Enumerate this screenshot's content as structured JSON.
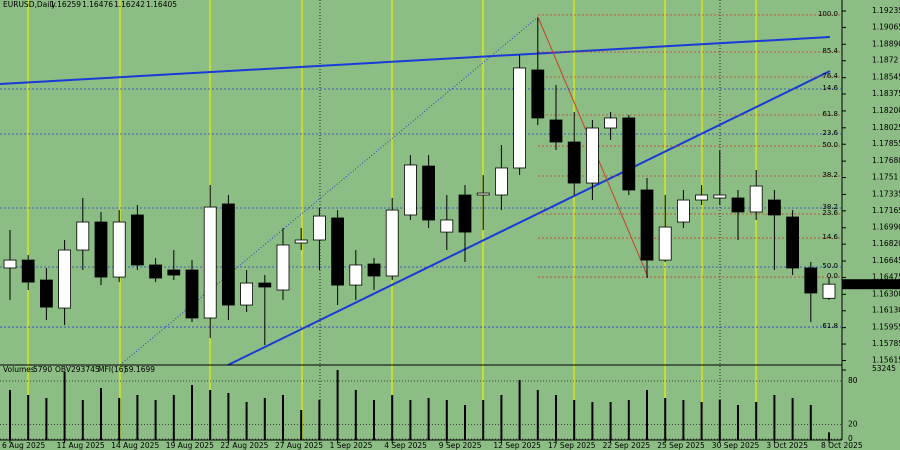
{
  "header": {
    "symbol": "EURUSD,Daily"
  },
  "chart_data": {
    "type": "candlestick",
    "categories": [
      "6 Aug 2025",
      null,
      null,
      "11 Aug 2025",
      null,
      null,
      "14 Aug 2025",
      null,
      null,
      "19 Aug 2025",
      null,
      null,
      "22 Aug 2025",
      null,
      null,
      "27 Aug 2025",
      null,
      null,
      "1 Sep 2025",
      null,
      null,
      "4 Sep 2025",
      null,
      null,
      "9 Sep 2025",
      null,
      null,
      "12 Sep 2025",
      null,
      null,
      "17 Sep 2025",
      null,
      null,
      "22 Sep 2025",
      null,
      null,
      "25 Sep 2025",
      null,
      null,
      "30 Sep 2025",
      null,
      null,
      "3 Oct 2025",
      null,
      null,
      "8 Oct 2025"
    ],
    "open": [
      1.16573,
      1.16655,
      1.16448,
      1.16158,
      1.16759,
      1.17049,
      1.16479,
      1.17122,
      1.16604,
      1.16552,
      1.16552,
      1.16055,
      1.17236,
      1.16189,
      1.16417,
      1.16345,
      1.16832,
      1.16863,
      1.17091,
      1.16396,
      1.16614,
      1.1649,
      1.17122,
      1.17629,
      1.16945,
      1.17329,
      1.17329,
      1.17329,
      1.17609,
      1.18624,
      1.18106,
      1.17878,
      1.17453,
      1.18023,
      1.18127,
      1.17381,
      1.16655,
      1.17049,
      1.17277,
      1.17298,
      1.17298,
      1.17153,
      1.17277,
      1.17101,
      1.16573,
      1.16259
    ],
    "high": [
      1.16966,
      1.16707,
      1.16573,
      1.16863,
      1.17298,
      1.17153,
      1.17173,
      1.17225,
      1.16676,
      1.16759,
      1.16655,
      1.17432,
      1.17329,
      1.16552,
      1.165,
      1.16987,
      1.16987,
      1.17194,
      1.17173,
      1.16759,
      1.16676,
      1.17298,
      1.17743,
      1.17743,
      1.17329,
      1.17432,
      1.17536,
      1.17847,
      1.18779,
      1.19163,
      1.18468,
      1.18189,
      1.18106,
      1.18189,
      1.18158,
      1.17505,
      1.17329,
      1.17381,
      1.17432,
      1.17795,
      1.17381,
      1.17588,
      1.17381,
      1.17173,
      1.16635,
      1.16476
    ],
    "low": [
      1.16241,
      1.16345,
      1.16034,
      1.15982,
      1.16552,
      1.16396,
      1.16427,
      1.16552,
      1.16427,
      1.16448,
      1.16013,
      1.15847,
      1.16034,
      1.16117,
      1.15775,
      1.16241,
      1.16759,
      1.16552,
      1.16189,
      1.16241,
      1.16345,
      1.16448,
      1.1707,
      1.16987,
      1.16759,
      1.16635,
      1.16966,
      1.17173,
      1.17536,
      1.18054,
      1.17795,
      1.17329,
      1.17277,
      1.17899,
      1.17329,
      1.16469,
      1.16635,
      1.16987,
      1.17225,
      1.17225,
      1.16863,
      1.1707,
      1.16552,
      1.165,
      1.16013,
      1.16242
    ],
    "close": [
      1.16655,
      1.16427,
      1.16168,
      1.16759,
      1.17049,
      1.16479,
      1.17049,
      1.16604,
      1.16469,
      1.165,
      1.16055,
      1.17204,
      1.16189,
      1.16417,
      1.16376,
      1.16811,
      1.16863,
      1.17111,
      1.16396,
      1.16604,
      1.1649,
      1.17173,
      1.1764,
      1.1707,
      1.1707,
      1.16945,
      1.17349,
      1.17609,
      1.18645,
      1.18127,
      1.17878,
      1.17453,
      1.18023,
      1.18127,
      1.17381,
      1.16655,
      1.16997,
      1.17277,
      1.17329,
      1.17329,
      1.17153,
      1.17422,
      1.17122,
      1.16573,
      1.16314,
      1.16405
    ],
    "up_color": "#ffffff",
    "down_color": "#000000",
    "ylim": [
      1.15568,
      1.19349
    ],
    "yticks": [
      1.19235,
      1.19065,
      {
        "value": 1.1889,
        "label": "1.18890"
      },
      1.1872,
      1.18545,
      1.18375,
      {
        "value": 1.182,
        "label": "1.18200"
      },
      1.18025,
      1.17855,
      {
        "value": 1.1768,
        "label": "1.17680"
      },
      1.1751,
      1.17335,
      1.17165,
      {
        "value": 1.1699,
        "label": "1.16990"
      },
      {
        "value": 1.1682,
        "label": "1.16820"
      },
      1.16645,
      1.16475,
      {
        "value": 1.163,
        "label": "1.16300"
      },
      {
        "value": 1.1613,
        "label": "1.16130"
      },
      1.15955,
      1.15785,
      1.15615
    ],
    "fib_levels": [
      {
        "label": "100.0",
        "value": 1.19194,
        "color": "#c8402a"
      },
      {
        "label": "85.4",
        "value": 1.1881,
        "color": "#c8402a"
      },
      {
        "label": "76.4",
        "value": 1.18551,
        "color": "#c8402a"
      },
      {
        "label": "14.6",
        "value": 1.18427,
        "color": "#2a3fd0"
      },
      {
        "label": "61.8",
        "value": 1.18158,
        "color": "#c8402a"
      },
      {
        "label": "23.6",
        "value": 1.17961,
        "color": "#2a3fd0"
      },
      {
        "label": "50.0",
        "value": 1.17836,
        "color": "#c8402a"
      },
      {
        "label": "38.2",
        "value": 1.17526,
        "color": "#c8402a"
      },
      {
        "label": "38.2",
        "value": 1.17194,
        "color": "#2a3fd0"
      },
      {
        "label": "23.6",
        "value": 1.17132,
        "color": "#c8402a"
      },
      {
        "label": "14.6",
        "value": 1.16883,
        "color": "#c8402a"
      },
      {
        "label": "50.0",
        "value": 1.16583,
        "color": "#2a3fd0"
      },
      {
        "label": "0.0",
        "value": 1.16479,
        "color": "#c8402a"
      },
      {
        "label": "61.8",
        "value": 1.15961,
        "color": "#2a3fd0"
      }
    ]
  },
  "volume_panel": {
    "type": "bar",
    "label": "Volumes",
    "color": "#000000",
    "values": [
      38030,
      34230,
      31950,
      51720,
      30430,
      39550,
      31950,
      34230,
      30430,
      34230,
      41830,
      38030,
      35750,
      28900,
      31950,
      34230,
      22820,
      30430,
      53240,
      38030,
      30430,
      34230,
      30430,
      31950,
      30430,
      26620,
      30430,
      34230,
      45640,
      38030,
      34230,
      30430,
      28900,
      28900,
      30430,
      38030,
      31950,
      30430,
      28900,
      30430,
      26620,
      28900,
      34230,
      31950,
      26620,
      5790
    ],
    "ylim": [
      0,
      53245
    ],
    "yticks": [
      53245
    ],
    "obv_label": "OBV",
    "obv": 293745,
    "mfi_label": "MFI(16)",
    "mfi": 59.1699,
    "mfi_ylim": [
      0,
      100
    ],
    "mfi_levels": [
      80,
      20,
      0
    ]
  }
}
